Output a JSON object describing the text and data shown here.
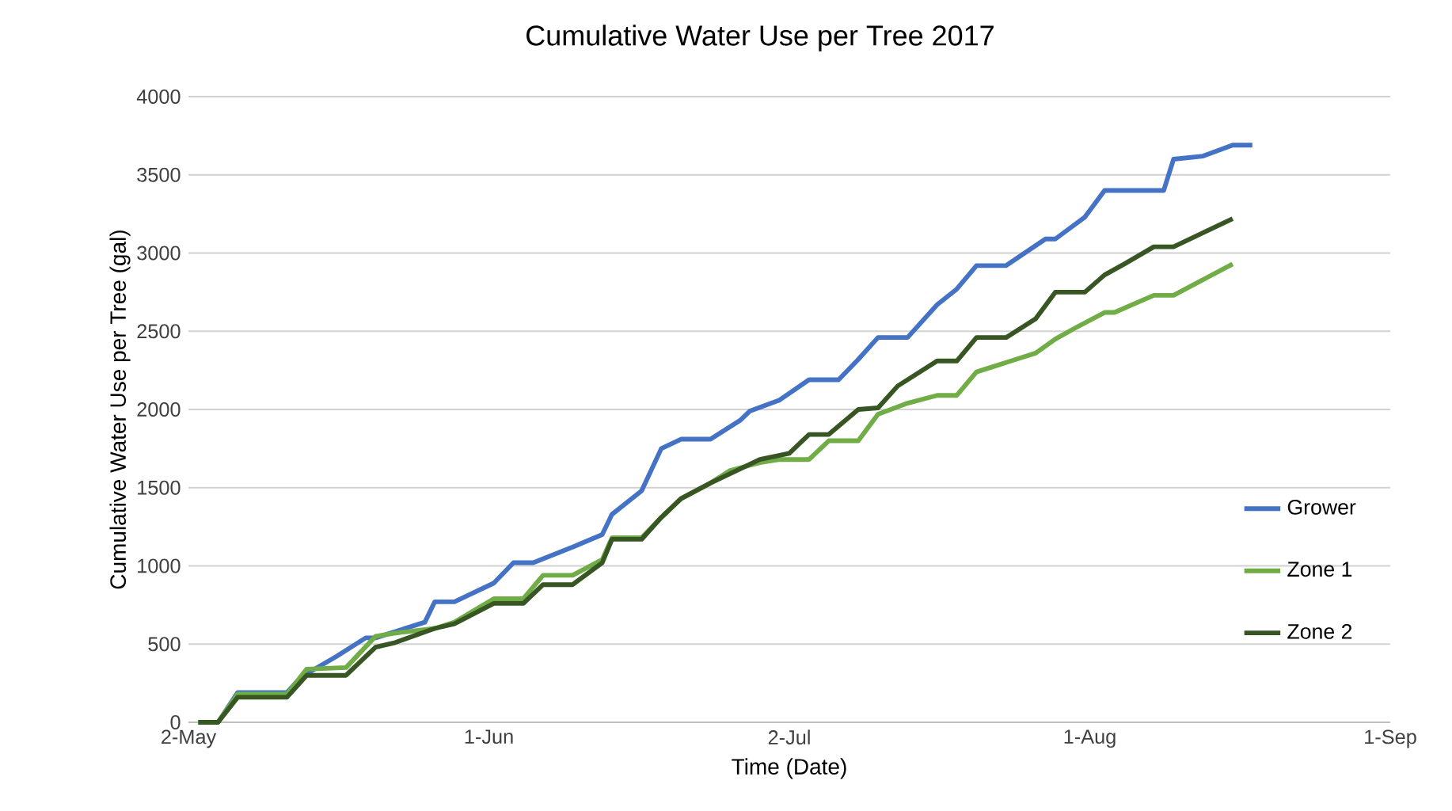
{
  "chart_data": {
    "type": "line",
    "title": "Cumulative Water Use per Tree 2017",
    "xlabel": "Time (Date)",
    "ylabel": "Cumulative Water Use per Tree (gal)",
    "xlim": [
      "2017-05-02",
      "2017-09-01"
    ],
    "xticks": [
      {
        "value": "2017-05-02",
        "label": "2-May"
      },
      {
        "value": "2017-06-01T12:00",
        "label": "1-Jun"
      },
      {
        "value": "2017-07-02",
        "label": "2-Jul"
      },
      {
        "value": "2017-08-01T12:00",
        "label": "1-Aug"
      },
      {
        "value": "2017-09-01",
        "label": "1-Sep"
      }
    ],
    "ylim": [
      0,
      4000
    ],
    "yticks": [
      0,
      500,
      1000,
      1500,
      2000,
      2500,
      3000,
      3500,
      4000
    ],
    "grid": "y",
    "legend": "right",
    "marker": "none",
    "line_style": "solid",
    "series": [
      {
        "name": "Grower",
        "color": "#4472c4",
        "x": [
          "2017-05-03",
          "2017-05-05",
          "2017-05-07",
          "2017-05-12",
          "2017-05-13",
          "2017-05-14",
          "2017-05-17",
          "2017-05-20",
          "2017-05-21",
          "2017-05-26",
          "2017-05-27",
          "2017-05-29",
          "2017-06-02",
          "2017-06-04",
          "2017-06-06",
          "2017-06-10",
          "2017-06-13",
          "2017-06-14",
          "2017-06-17",
          "2017-06-19",
          "2017-06-21",
          "2017-06-24",
          "2017-06-27",
          "2017-06-28",
          "2017-07-01",
          "2017-07-04",
          "2017-07-07",
          "2017-07-09",
          "2017-07-11",
          "2017-07-14",
          "2017-07-17",
          "2017-07-19",
          "2017-07-21",
          "2017-07-24",
          "2017-07-28",
          "2017-07-29",
          "2017-08-01",
          "2017-08-03",
          "2017-08-09",
          "2017-08-10",
          "2017-08-13",
          "2017-08-16",
          "2017-08-18"
        ],
        "values": [
          0,
          0,
          190,
          190,
          260,
          310,
          420,
          540,
          540,
          640,
          770,
          770,
          890,
          1020,
          1020,
          1120,
          1200,
          1330,
          1480,
          1750,
          1810,
          1810,
          1930,
          1990,
          2060,
          2190,
          2190,
          2320,
          2460,
          2460,
          2670,
          2770,
          2920,
          2920,
          3090,
          3090,
          3230,
          3400,
          3400,
          3600,
          3620,
          3690,
          3690
        ]
      },
      {
        "name": "Zone 1",
        "color": "#70ad47",
        "x": [
          "2017-05-03",
          "2017-05-05",
          "2017-05-07",
          "2017-05-12",
          "2017-05-14",
          "2017-05-18",
          "2017-05-21",
          "2017-05-23",
          "2017-05-27",
          "2017-05-29",
          "2017-06-02",
          "2017-06-05",
          "2017-06-07",
          "2017-06-10",
          "2017-06-13",
          "2017-06-14",
          "2017-06-17",
          "2017-06-19",
          "2017-06-21",
          "2017-06-24",
          "2017-06-26",
          "2017-06-29",
          "2017-07-01",
          "2017-07-04",
          "2017-07-06",
          "2017-07-09",
          "2017-07-11",
          "2017-07-14",
          "2017-07-17",
          "2017-07-19",
          "2017-07-21",
          "2017-07-25",
          "2017-07-27",
          "2017-07-29",
          "2017-07-31",
          "2017-08-03",
          "2017-08-04",
          "2017-08-08",
          "2017-08-10",
          "2017-08-13",
          "2017-08-16"
        ],
        "values": [
          0,
          0,
          180,
          180,
          340,
          350,
          550,
          570,
          600,
          640,
          790,
          790,
          940,
          940,
          1040,
          1180,
          1180,
          1310,
          1430,
          1530,
          1610,
          1660,
          1680,
          1680,
          1800,
          1800,
          1970,
          2040,
          2090,
          2090,
          2240,
          2320,
          2360,
          2450,
          2520,
          2620,
          2620,
          2730,
          2730,
          2830,
          2930
        ]
      },
      {
        "name": "Zone 2",
        "color": "#375623",
        "x": [
          "2017-05-03",
          "2017-05-05",
          "2017-05-07",
          "2017-05-12",
          "2017-05-14",
          "2017-05-18",
          "2017-05-21",
          "2017-05-23",
          "2017-05-27",
          "2017-05-29",
          "2017-06-02",
          "2017-06-05",
          "2017-06-07",
          "2017-06-10",
          "2017-06-13",
          "2017-06-14",
          "2017-06-17",
          "2017-06-19",
          "2017-06-21",
          "2017-06-24",
          "2017-06-27",
          "2017-06-29",
          "2017-07-02",
          "2017-07-04",
          "2017-07-06",
          "2017-07-09",
          "2017-07-11",
          "2017-07-13",
          "2017-07-17",
          "2017-07-19",
          "2017-07-21",
          "2017-07-24",
          "2017-07-27",
          "2017-07-29",
          "2017-08-01",
          "2017-08-03",
          "2017-08-05",
          "2017-08-08",
          "2017-08-10",
          "2017-08-13",
          "2017-08-16"
        ],
        "values": [
          0,
          0,
          160,
          160,
          300,
          300,
          480,
          510,
          600,
          630,
          760,
          760,
          880,
          880,
          1020,
          1170,
          1170,
          1310,
          1430,
          1530,
          1620,
          1680,
          1720,
          1840,
          1840,
          2000,
          2010,
          2150,
          2310,
          2310,
          2460,
          2460,
          2580,
          2750,
          2750,
          2860,
          2930,
          3040,
          3040,
          3130,
          3220
        ]
      }
    ]
  }
}
